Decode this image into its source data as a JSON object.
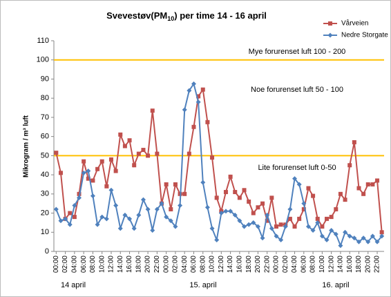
{
  "chart_data": {
    "type": "line",
    "title": [
      "Svevestøv(PM",
      "10",
      ")  per time 14 - 16 april"
    ],
    "y_label": "Mikrogram / m³ luft",
    "categories": [
      "00:00",
      null,
      "02:00",
      null,
      "04:00",
      null,
      "06:00",
      null,
      "08:00",
      null,
      "10:00",
      null,
      "12:00",
      null,
      "14:00",
      null,
      "16:00",
      null,
      "18:00",
      null,
      "20:00",
      null,
      "22:00",
      null,
      "00:00",
      null,
      "02:00",
      null,
      "04:00",
      null,
      "06:00",
      null,
      "08:00",
      null,
      "10:00",
      null,
      "12:00",
      null,
      "14:00",
      null,
      "16:00",
      null,
      "18:00",
      null,
      "20:00",
      null,
      "22:00",
      null,
      "00:00",
      null,
      "02:00",
      null,
      "04:00",
      null,
      "06:00",
      null,
      "08:00",
      null,
      "10:00",
      null,
      "12:00",
      null,
      "14:00",
      null,
      "16:00",
      null,
      "18:00",
      null,
      "20:00",
      null,
      "22:00",
      null
    ],
    "day_labels": [
      "14 april",
      "15. april",
      "16. april"
    ],
    "series": [
      {
        "name": "Vårveien",
        "color": "#c0504d",
        "marker": "square",
        "values": [
          51.5,
          41,
          17,
          20,
          18,
          30,
          47,
          38,
          37,
          43,
          47,
          34,
          48,
          42,
          61,
          55,
          58,
          45,
          51,
          53,
          50,
          73.5,
          51,
          25,
          35,
          22,
          35,
          30,
          30,
          51,
          65,
          81,
          84.5,
          67.5,
          49,
          28,
          21,
          31,
          39,
          31,
          28,
          32,
          26,
          20,
          23,
          25,
          16,
          28,
          13,
          14,
          14,
          17,
          13,
          17,
          22,
          33,
          29,
          17,
          13,
          17,
          18,
          22,
          30,
          27,
          45,
          57,
          33,
          30,
          35,
          35,
          37,
          10
        ]
      },
      {
        "name": "Nedre Storgate",
        "color": "#4f81bd",
        "marker": "diamond",
        "values": [
          22,
          16,
          17,
          14,
          24,
          28,
          41,
          42,
          29,
          14,
          18,
          17,
          32,
          24,
          12,
          19,
          17,
          12,
          19,
          27,
          22,
          11,
          22,
          25,
          18,
          16,
          13,
          24,
          74,
          84,
          87.5,
          78,
          36,
          23,
          12,
          6,
          20,
          21,
          21,
          19,
          16,
          13,
          14,
          15,
          13,
          7,
          19,
          12,
          8,
          6,
          13,
          22,
          38,
          35,
          25,
          13,
          11,
          15,
          8,
          6,
          11,
          9,
          3,
          10,
          8,
          7,
          5,
          7,
          5,
          8,
          5,
          8
        ]
      }
    ],
    "reference_lines": [
      {
        "value": 100,
        "color": "#ffc000"
      },
      {
        "value": 50,
        "color": "#ffc000"
      }
    ],
    "annotations": [
      "Mye  forurenset luft 100 - 200",
      "Noe forurenset luft 50 - 100",
      "Lite forurenset luft 0-50"
    ],
    "ylim": [
      0,
      110
    ],
    "yticks": [
      0,
      10,
      20,
      30,
      40,
      50,
      60,
      70,
      80,
      90,
      100,
      110
    ],
    "grid": false
  }
}
